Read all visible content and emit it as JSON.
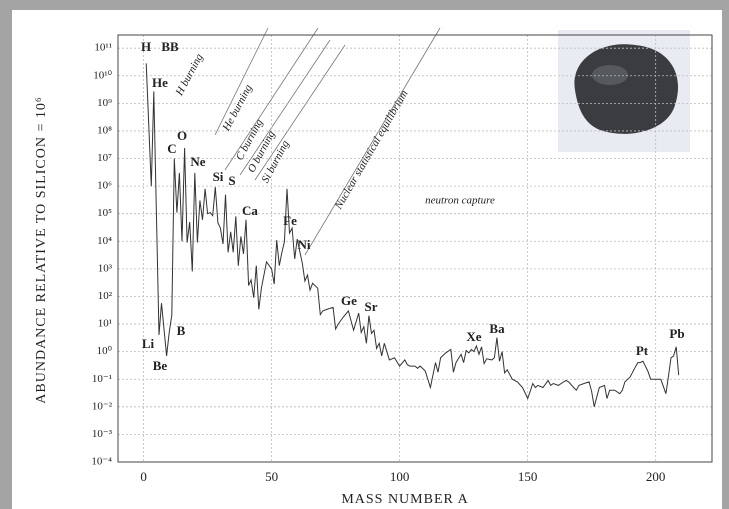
{
  "chart_data": {
    "type": "line",
    "log_y": true,
    "grid": true,
    "color": "#333333",
    "x_label": "MASS NUMBER A",
    "y_label": "ABUNDANCE RELATIVE TO SILICON = 10⁶",
    "xlim": [
      -10,
      222
    ],
    "xticks": [
      0,
      50,
      100,
      150,
      200
    ],
    "ylim": [
      0.0001,
      300000000000
    ],
    "yticks": [
      {
        "value": 0.0001,
        "label": "10⁻⁴"
      },
      {
        "value": 0.001,
        "label": "10⁻³"
      },
      {
        "value": 0.01,
        "label": "10⁻²"
      },
      {
        "value": 0.1,
        "label": "10⁻¹"
      },
      {
        "value": 1,
        "label": "10⁰"
      },
      {
        "value": 10,
        "label": "10¹"
      },
      {
        "value": 100,
        "label": "10²"
      },
      {
        "value": 1000,
        "label": "10³"
      },
      {
        "value": 10000,
        "label": "10⁴"
      },
      {
        "value": 100000,
        "label": "10⁵"
      },
      {
        "value": 1000000,
        "label": "10⁶"
      },
      {
        "value": 10000000,
        "label": "10⁷"
      },
      {
        "value": 100000000,
        "label": "10⁸"
      },
      {
        "value": 1000000000,
        "label": "10⁹"
      },
      {
        "value": 10000000000,
        "label": "10¹⁰"
      },
      {
        "value": 100000000000,
        "label": "10¹¹"
      }
    ],
    "x": [
      1,
      3,
      4,
      6,
      7,
      9,
      10,
      11,
      12,
      13,
      14,
      15,
      16,
      17,
      18,
      19,
      20,
      21,
      22,
      23,
      24,
      25,
      26,
      27,
      28,
      29,
      30,
      31,
      32,
      33,
      34,
      35,
      36,
      37,
      38,
      39,
      40,
      41,
      42,
      43,
      44,
      45,
      46,
      48,
      50,
      51,
      52,
      53,
      54,
      55,
      56,
      57,
      58,
      59,
      60,
      62,
      63,
      64,
      65,
      66,
      68,
      69,
      70,
      72,
      74,
      75,
      76,
      78,
      80,
      82,
      84,
      85,
      86,
      87,
      88,
      89,
      90,
      91,
      92,
      93,
      94,
      96,
      98,
      100,
      102,
      103,
      104,
      106,
      107,
      108,
      110,
      112,
      114,
      115,
      116,
      118,
      120,
      121,
      122,
      124,
      125,
      126,
      127,
      128,
      129,
      130,
      131,
      132,
      133,
      134,
      136,
      137,
      138,
      139,
      140,
      141,
      142,
      144,
      146,
      148,
      150,
      152,
      153,
      154,
      156,
      158,
      159,
      160,
      162,
      164,
      165,
      166,
      168,
      169,
      170,
      172,
      174,
      175,
      176,
      178,
      180,
      181,
      182,
      184,
      186,
      187,
      188,
      190,
      192,
      193,
      194,
      195,
      196,
      197,
      198,
      200,
      202,
      204,
      205,
      206,
      207,
      208,
      209
    ],
    "values": [
      28000000000,
      1000000,
      2700000000,
      4,
      57,
      0.7,
      5,
      21,
      10000000,
      110000,
      3000000,
      10000,
      24000000,
      9000,
      50000,
      800,
      3000000,
      9000,
      300000,
      60000,
      800000,
      100000,
      110000,
      85000,
      920000,
      47000,
      30000,
      8000,
      490000,
      4000,
      22000,
      4000,
      80000,
      1300,
      15000,
      3500,
      60000,
      250,
      400,
      90,
      1300,
      34,
      200,
      1800,
      1000,
      280,
      11000,
      1300,
      4000,
      9500,
      800000,
      20000,
      30000,
      2300,
      12000,
      1600,
      360,
      600,
      170,
      300,
      200,
      22,
      30,
      35,
      40,
      6.6,
      10,
      18,
      30,
      6,
      25,
      5,
      8,
      2,
      20,
      4.6,
      6,
      1.3,
      2,
      0.7,
      2,
      0.5,
      0.6,
      0.3,
      0.5,
      0.34,
      0.3,
      0.3,
      0.25,
      0.3,
      0.2,
      0.05,
      0.4,
      0.18,
      0.6,
      0.9,
      1.2,
      0.18,
      0.4,
      0.8,
      0.4,
      1.1,
      0.9,
      1.2,
      1,
      1.6,
      0.8,
      1.5,
      0.37,
      0.55,
      0.5,
      0.6,
      3.2,
      0.45,
      1,
      0.17,
      0.22,
      0.1,
      0.08,
      0.05,
      0.02,
      0.07,
      0.05,
      0.06,
      0.05,
      0.09,
      0.06,
      0.07,
      0.06,
      0.08,
      0.09,
      0.08,
      0.05,
      0.04,
      0.06,
      0.07,
      0.08,
      0.035,
      0.01,
      0.05,
      0.06,
      0.02,
      0.04,
      0.04,
      0.03,
      0.04,
      0.08,
      0.12,
      0.27,
      0.4,
      0.4,
      0.45,
      0.3,
      0.19,
      0.1,
      0.1,
      0.1,
      0.03,
      0.13,
      0.6,
      0.7,
      1.5,
      0.14
    ],
    "element_labels": [
      "H",
      "BB",
      "He",
      "Li",
      "Be",
      "B",
      "C",
      "O",
      "Ne",
      "Si",
      "S",
      "Ca",
      "Fe",
      "Ni",
      "Ge",
      "Sr",
      "Xe",
      "Ba",
      "Pt",
      "Pb"
    ],
    "process_labels": [
      "H burning",
      "He burning",
      "C burning",
      "O burning",
      "Si burning",
      "Nuclear statistical equilibrium",
      "neutron capture"
    ]
  }
}
